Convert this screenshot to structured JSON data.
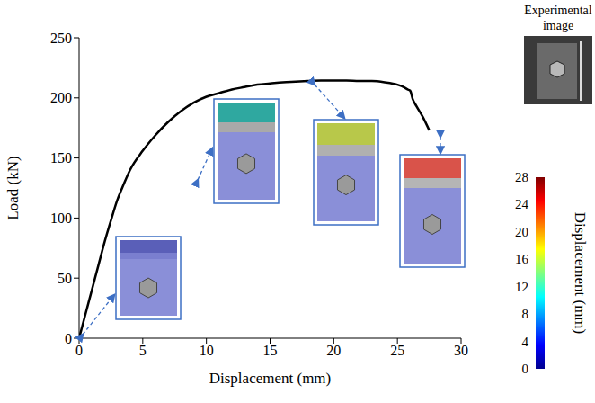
{
  "chart_data": {
    "type": "line",
    "x_label": "Displacement (mm)",
    "y_label": "Load (kN)",
    "color": "#000000",
    "grid": false,
    "xlim": [
      0,
      30
    ],
    "xticks": [
      0,
      5,
      10,
      15,
      20,
      25,
      30
    ],
    "ylim": [
      0,
      250
    ],
    "yticks": [
      0,
      50,
      100,
      150,
      200,
      250
    ],
    "x": [
      0,
      0.5,
      1,
      1.5,
      2,
      2.5,
      3,
      3.5,
      4,
      5,
      6,
      7,
      8,
      9,
      10,
      11,
      12,
      13,
      14,
      15,
      16,
      17,
      18,
      19,
      20,
      21,
      22,
      23,
      24,
      25,
      25.5,
      25.8,
      26,
      26.2,
      26.5,
      27,
      27.5
    ],
    "values": [
      0,
      20,
      40,
      60,
      80,
      98,
      115,
      128,
      140,
      156,
      169,
      180,
      189,
      196,
      201,
      204,
      207,
      209,
      211,
      212,
      213,
      213.5,
      214,
      214.5,
      214.5,
      214.5,
      214,
      214,
      213,
      211,
      209,
      207,
      206,
      199,
      193,
      184,
      173
    ],
    "colorbar": {
      "label": "Displacement (mm)",
      "range": [
        0,
        28
      ],
      "ticks": [
        0,
        4,
        8,
        12,
        16,
        20,
        24,
        28
      ]
    },
    "inset_title": "Experimental image"
  }
}
